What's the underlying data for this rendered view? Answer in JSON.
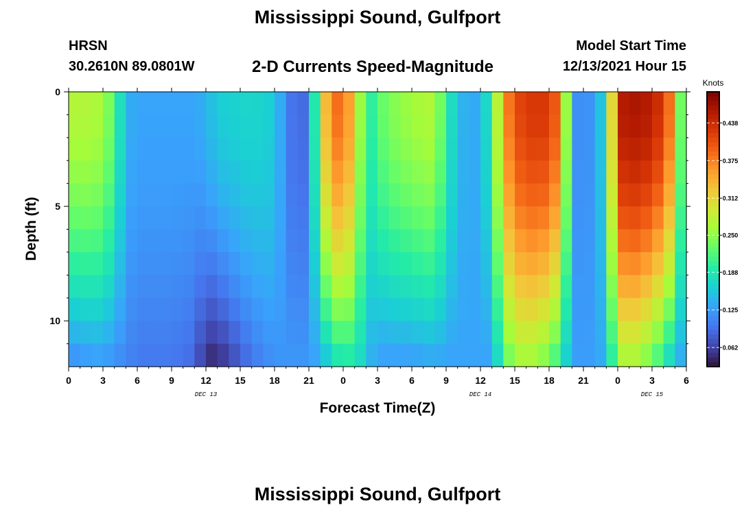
{
  "page": {
    "title": "Mississippi Sound, Gulfport",
    "station": "HRSN",
    "coords": "30.2610N  89.0801W",
    "subtitle": "2-D Currents Speed-Magnitude",
    "start_label": "Model Start Time",
    "start_value": "12/13/2021 Hour 15",
    "next_title": "Mississippi Sound, Gulfport"
  },
  "colors": {
    "colormap": [
      "#30123b",
      "#4145ab",
      "#4675ed",
      "#39a2fc",
      "#1bcfd4",
      "#24eca6",
      "#61fc6c",
      "#a4fc3b",
      "#d1e834",
      "#f3c63a",
      "#fe9b2d",
      "#f36315",
      "#d93806",
      "#b11901",
      "#7a0402"
    ]
  },
  "chart_data": {
    "type": "heatmap",
    "xlabel": "Forecast Time(Z)",
    "ylabel": "Depth (ft)",
    "colorbar_label": "Knots",
    "x_hours_from_dec13_00": [
      0,
      54
    ],
    "x_tick_labels": [
      "0",
      "3",
      "6",
      "9",
      "12",
      "15",
      "18",
      "21",
      "0",
      "3",
      "6",
      "9",
      "12",
      "15",
      "18",
      "21",
      "0",
      "3",
      "6"
    ],
    "x_day_labels": [
      {
        "hour": 12,
        "label": "DEC 13"
      },
      {
        "hour": 36,
        "label": "DEC 14"
      },
      {
        "hour": 51,
        "label": "DEC 15"
      }
    ],
    "y_range_ft": [
      0,
      12
    ],
    "y_tick_labels": [
      {
        "value": 0,
        "label": "0"
      },
      {
        "value": 5,
        "label": "5"
      },
      {
        "value": 10,
        "label": "10"
      }
    ],
    "color_range": [
      0.03,
      0.49
    ],
    "colorbar_ticks": [
      "0.062",
      "0.125",
      "0.188",
      "0.250",
      "0.312",
      "0.375",
      "0.438"
    ],
    "colorbar_tick_values": [
      0.062,
      0.125,
      0.188,
      0.25,
      0.312,
      0.375,
      0.438
    ],
    "depth_levels": 12,
    "time_steps": 54,
    "speed_profile": {
      "hours": [
        0,
        2,
        3,
        4,
        5,
        6,
        9,
        11,
        12,
        13,
        16,
        18,
        19,
        20,
        21,
        22,
        23,
        24,
        25,
        26,
        26.5,
        27,
        28,
        30,
        32,
        33,
        34,
        35,
        36,
        37,
        38,
        39,
        40,
        41,
        42,
        43,
        44,
        45,
        47,
        48,
        49,
        50,
        51,
        52,
        53,
        54
      ],
      "surface_knots": [
        0.27,
        0.27,
        0.26,
        0.22,
        0.14,
        0.13,
        0.13,
        0.13,
        0.14,
        0.16,
        0.17,
        0.16,
        0.11,
        0.08,
        0.1,
        0.28,
        0.39,
        0.38,
        0.33,
        0.18,
        0.2,
        0.22,
        0.24,
        0.26,
        0.27,
        0.2,
        0.15,
        0.13,
        0.14,
        0.2,
        0.35,
        0.41,
        0.42,
        0.43,
        0.42,
        0.38,
        0.13,
        0.1,
        0.17,
        0.45,
        0.46,
        0.46,
        0.45,
        0.42,
        0.35,
        0.12
      ],
      "bottom_knots": [
        0.12,
        0.13,
        0.13,
        0.12,
        0.11,
        0.1,
        0.1,
        0.09,
        0.05,
        0.05,
        0.1,
        0.12,
        0.12,
        0.12,
        0.12,
        0.14,
        0.18,
        0.2,
        0.19,
        0.16,
        0.14,
        0.13,
        0.13,
        0.13,
        0.14,
        0.13,
        0.13,
        0.13,
        0.13,
        0.13,
        0.22,
        0.26,
        0.27,
        0.26,
        0.24,
        0.2,
        0.13,
        0.12,
        0.14,
        0.26,
        0.28,
        0.26,
        0.24,
        0.2,
        0.16,
        0.12
      ]
    }
  }
}
